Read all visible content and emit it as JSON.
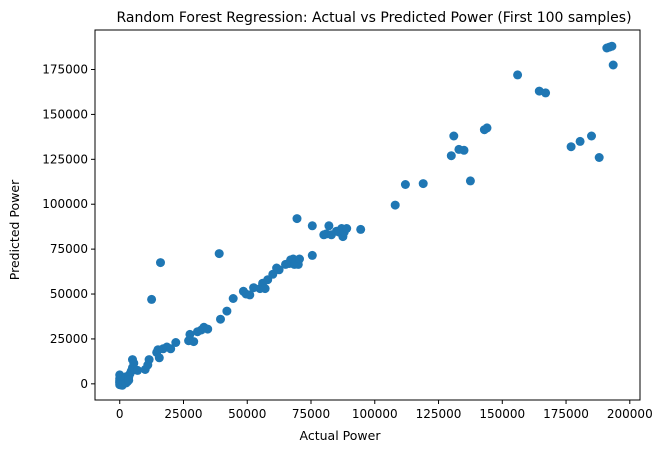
{
  "chart_data": {
    "type": "scatter",
    "title": "Random Forest Regression: Actual vs Predicted Power (First 100 samples)",
    "xlabel": "Actual Power",
    "ylabel": "Predicted Power",
    "xlim": [
      -9700,
      204000
    ],
    "ylim": [
      -9000,
      197000
    ],
    "xticks": [
      0,
      25000,
      50000,
      75000,
      100000,
      125000,
      150000,
      175000,
      200000
    ],
    "yticks": [
      0,
      25000,
      50000,
      75000,
      100000,
      125000,
      150000,
      175000
    ],
    "marker_color": "#1f77b4",
    "grid": false,
    "points": [
      [
        0,
        500
      ],
      [
        0,
        1000
      ],
      [
        0,
        2000
      ],
      [
        0,
        3000
      ],
      [
        0,
        5000
      ],
      [
        500,
        -500
      ],
      [
        1000,
        1500
      ],
      [
        1500,
        800
      ],
      [
        2000,
        2500
      ],
      [
        2500,
        4000
      ],
      [
        3000,
        1200
      ],
      [
        3500,
        3500
      ],
      [
        4000,
        5500
      ],
      [
        4500,
        7000
      ],
      [
        5000,
        9000
      ],
      [
        5000,
        13500
      ],
      [
        5500,
        11500
      ],
      [
        6000,
        8000
      ],
      [
        7000,
        7500
      ],
      [
        10000,
        8000
      ],
      [
        11000,
        10500
      ],
      [
        11500,
        13500
      ],
      [
        12500,
        47000
      ],
      [
        14500,
        17500
      ],
      [
        15000,
        19000
      ],
      [
        15500,
        14500
      ],
      [
        16000,
        67500
      ],
      [
        17000,
        19500
      ],
      [
        18500,
        20500
      ],
      [
        20000,
        19500
      ],
      [
        22000,
        23000
      ],
      [
        27000,
        24000
      ],
      [
        27500,
        27500
      ],
      [
        29000,
        23500
      ],
      [
        30500,
        29000
      ],
      [
        32000,
        30000
      ],
      [
        33000,
        31500
      ],
      [
        34500,
        30500
      ],
      [
        39000,
        72500
      ],
      [
        39500,
        36000
      ],
      [
        42000,
        40500
      ],
      [
        44500,
        47500
      ],
      [
        48500,
        51500
      ],
      [
        49500,
        50000
      ],
      [
        51000,
        49500
      ],
      [
        52500,
        53500
      ],
      [
        55000,
        53000
      ],
      [
        56000,
        56000
      ],
      [
        57000,
        53000
      ],
      [
        58000,
        58000
      ],
      [
        60000,
        61000
      ],
      [
        61500,
        64500
      ],
      [
        62500,
        63500
      ],
      [
        65000,
        66500
      ],
      [
        66500,
        67000
      ],
      [
        67000,
        69000
      ],
      [
        68000,
        69500
      ],
      [
        68500,
        66500
      ],
      [
        69000,
        68000
      ],
      [
        69500,
        92000
      ],
      [
        70000,
        66500
      ],
      [
        70500,
        69500
      ],
      [
        75500,
        71500
      ],
      [
        75500,
        88000
      ],
      [
        80000,
        83000
      ],
      [
        81000,
        83500
      ],
      [
        82000,
        88000
      ],
      [
        83000,
        83000
      ],
      [
        85000,
        85000
      ],
      [
        86000,
        84500
      ],
      [
        87000,
        86500
      ],
      [
        87500,
        82000
      ],
      [
        88000,
        84500
      ],
      [
        89000,
        86500
      ],
      [
        94500,
        86000
      ],
      [
        108000,
        99500
      ],
      [
        112000,
        111000
      ],
      [
        119000,
        111500
      ],
      [
        130000,
        127000
      ],
      [
        131000,
        138000
      ],
      [
        133000,
        130500
      ],
      [
        135000,
        130000
      ],
      [
        137500,
        113000
      ],
      [
        143000,
        141500
      ],
      [
        144000,
        142500
      ],
      [
        156000,
        172000
      ],
      [
        164500,
        163000
      ],
      [
        167000,
        162000
      ],
      [
        177000,
        132000
      ],
      [
        180500,
        135000
      ],
      [
        185000,
        138000
      ],
      [
        188000,
        126000
      ],
      [
        191000,
        187000
      ],
      [
        192000,
        187500
      ],
      [
        193000,
        188000
      ],
      [
        193500,
        177500
      ],
      [
        0,
        -500
      ],
      [
        1000,
        -800
      ],
      [
        2500,
        500
      ],
      [
        3500,
        2000
      ]
    ]
  }
}
